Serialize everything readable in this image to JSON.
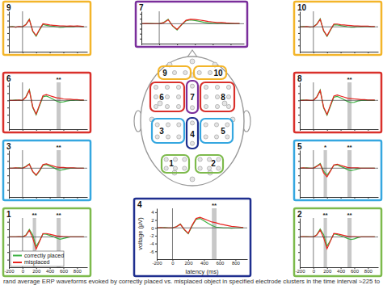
{
  "chart_data": [
    {
      "type": "line",
      "title": "1",
      "tick_labels": "x",
      "legend": "lower left",
      "x": [
        -200,
        -150,
        -100,
        -50,
        0,
        50,
        100,
        150,
        200,
        250,
        300,
        350,
        400,
        450,
        500,
        550,
        600,
        650,
        700,
        750,
        800,
        850,
        900
      ],
      "xlim": [
        -200,
        950
      ],
      "xticks": [
        -200,
        0,
        200,
        400,
        600,
        800
      ],
      "ylim": [
        -8,
        5
      ],
      "yticks": [
        4,
        2,
        0,
        -2,
        -4,
        -6
      ],
      "series": [
        {
          "name": "correctly placed",
          "color": "#3cb043",
          "values": [
            0,
            0,
            0,
            0,
            0,
            0.5,
            2,
            0.5,
            -2.5,
            -1,
            0.8,
            0.7,
            0.4,
            0.1,
            -0.3,
            -0.6,
            -0.4,
            -0.2,
            0,
            0,
            0,
            0,
            0
          ]
        },
        {
          "name": "misplaced",
          "color": "#e8231f",
          "values": [
            0,
            0,
            0,
            0.1,
            0,
            0.4,
            1.7,
            -0.3,
            -3.2,
            -1.2,
            0.9,
            0.9,
            0.7,
            0.5,
            0.3,
            0.2,
            0.1,
            0.1,
            0,
            0,
            0,
            0,
            0
          ]
        }
      ],
      "windows": [
        {
          "start": 150,
          "end": 200,
          "label": "**"
        },
        {
          "start": 500,
          "end": 560,
          "label": "**"
        }
      ]
    },
    {
      "type": "line",
      "title": "2",
      "tick_labels": "x",
      "x": [
        -200,
        -150,
        -100,
        -50,
        0,
        50,
        100,
        150,
        200,
        250,
        300,
        350,
        400,
        450,
        500,
        550,
        600,
        650,
        700,
        750,
        800,
        850,
        900
      ],
      "xlim": [
        -200,
        950
      ],
      "xticks": [
        -200,
        0,
        200,
        400,
        600,
        800
      ],
      "ylim": [
        -8,
        5
      ],
      "yticks": [
        4,
        2,
        0,
        -2,
        -4,
        -6
      ],
      "series": [
        {
          "color": "#3cb043",
          "values": [
            0,
            0,
            0.1,
            0,
            0,
            0.6,
            2.1,
            0.6,
            -2.4,
            -0.9,
            0.8,
            0.6,
            0.3,
            0,
            -0.4,
            -0.7,
            -0.5,
            -0.2,
            0,
            0,
            0,
            0,
            0
          ]
        },
        {
          "color": "#e8231f",
          "values": [
            0,
            0.1,
            0,
            0,
            0,
            0.5,
            1.8,
            -0.2,
            -3.1,
            -1.1,
            0.9,
            0.8,
            0.6,
            0.4,
            0.2,
            0.1,
            0.1,
            0,
            0,
            0,
            0,
            0,
            0
          ]
        }
      ],
      "windows": [
        {
          "start": 150,
          "end": 200,
          "label": "**"
        },
        {
          "start": 500,
          "end": 560,
          "label": "**"
        }
      ]
    },
    {
      "type": "line",
      "title": "3",
      "tick_labels": false,
      "x": [
        -200,
        -150,
        -100,
        -50,
        0,
        50,
        100,
        150,
        200,
        250,
        300,
        350,
        400,
        450,
        500,
        550,
        600,
        650,
        700,
        750,
        800,
        850,
        900
      ],
      "xlim": [
        -200,
        950
      ],
      "xticks": [
        -200,
        0,
        200,
        400,
        600,
        800
      ],
      "ylim": [
        -8,
        5
      ],
      "yticks": [
        4,
        2,
        0,
        -2,
        -4,
        -6
      ],
      "series": [
        {
          "color": "#3cb043",
          "values": [
            0,
            0,
            0,
            0.1,
            0,
            0.5,
            1.2,
            -1,
            -2,
            -0.8,
            0.8,
            1,
            0.6,
            0.2,
            -0.3,
            -0.6,
            -0.4,
            -0.2,
            0,
            0,
            0,
            0,
            0
          ]
        },
        {
          "color": "#e8231f",
          "values": [
            0,
            0,
            0.1,
            0,
            0,
            0.4,
            1.1,
            -0.9,
            -1.9,
            -0.6,
            1,
            1.2,
            0.9,
            0.6,
            0.3,
            0.2,
            0.2,
            0.1,
            0.1,
            0.1,
            0,
            0,
            0
          ]
        }
      ],
      "windows": [
        {
          "start": 500,
          "end": 560,
          "label": "**"
        }
      ]
    },
    {
      "type": "line",
      "title": "4",
      "xlabel": "latency (ms)",
      "ylabel": "voltage (µV)",
      "x": [
        -200,
        -150,
        -100,
        -50,
        0,
        50,
        100,
        150,
        200,
        250,
        300,
        350,
        400,
        450,
        500,
        550,
        600,
        650,
        700,
        750,
        800,
        850,
        900
      ],
      "xlim": [
        -200,
        950
      ],
      "xticks": [
        -200,
        0,
        200,
        400,
        600,
        800
      ],
      "ylim": [
        -8,
        5
      ],
      "yticks": [
        4,
        2,
        0,
        -2,
        -4,
        -6
      ],
      "series": [
        {
          "color": "#3cb043",
          "values": [
            0,
            0,
            0.1,
            0,
            0,
            0.3,
            1,
            -0.5,
            -1.5,
            0.5,
            2.2,
            2.4,
            1.8,
            1.2,
            0.6,
            0.2,
            0.1,
            0,
            0,
            -0.1,
            0,
            0,
            0
          ]
        },
        {
          "color": "#e8231f",
          "values": [
            0,
            0.1,
            0,
            0,
            0,
            0.3,
            0.9,
            -0.4,
            -1.4,
            0.7,
            2.4,
            2.7,
            2.3,
            1.9,
            1.5,
            1.3,
            1,
            0.8,
            0.6,
            0.4,
            0.3,
            0.2,
            0.1
          ]
        }
      ],
      "windows": [
        {
          "start": 500,
          "end": 560,
          "label": "**"
        }
      ]
    },
    {
      "type": "line",
      "title": "5",
      "tick_labels": false,
      "x": [
        -200,
        -150,
        -100,
        -50,
        0,
        50,
        100,
        150,
        200,
        250,
        300,
        350,
        400,
        450,
        500,
        550,
        600,
        650,
        700,
        750,
        800,
        850,
        900
      ],
      "xlim": [
        -200,
        950
      ],
      "xticks": [
        -200,
        0,
        200,
        400,
        600,
        800
      ],
      "ylim": [
        -8,
        5
      ],
      "yticks": [
        4,
        2,
        0,
        -2,
        -4,
        -6
      ],
      "series": [
        {
          "color": "#3cb043",
          "values": [
            0,
            0,
            0.1,
            0,
            0,
            0.6,
            1.3,
            -0.8,
            -1.9,
            -0.7,
            0.8,
            0.9,
            0.5,
            0.1,
            -0.4,
            -0.7,
            -0.5,
            -0.2,
            0,
            0,
            0,
            0,
            0
          ]
        },
        {
          "color": "#e8231f",
          "values": [
            0,
            0.1,
            0,
            0,
            0,
            0.5,
            1.1,
            -1.3,
            -2.4,
            -0.8,
            0.9,
            1.1,
            0.8,
            0.5,
            0.2,
            0.1,
            0.1,
            0.1,
            0,
            0,
            0,
            0,
            0
          ]
        }
      ],
      "windows": [
        {
          "start": 150,
          "end": 200,
          "label": "*"
        },
        {
          "start": 500,
          "end": 560,
          "label": "**"
        }
      ]
    },
    {
      "type": "line",
      "title": "6",
      "tick_labels": false,
      "x": [
        -200,
        -150,
        -100,
        -50,
        0,
        50,
        100,
        150,
        200,
        250,
        300,
        350,
        400,
        450,
        500,
        550,
        600,
        650,
        700,
        750,
        800,
        850,
        900
      ],
      "xlim": [
        -200,
        950
      ],
      "xticks": [
        -200,
        0,
        200,
        400,
        600,
        800
      ],
      "ylim": [
        -8,
        5
      ],
      "yticks": [
        4,
        2,
        0,
        -2,
        -4,
        -6
      ],
      "series": [
        {
          "color": "#3cb043",
          "values": [
            0,
            0,
            0.1,
            0,
            0,
            1,
            3,
            -2,
            -4,
            -1.5,
            1,
            1.2,
            0.8,
            0.3,
            -0.2,
            -0.5,
            -0.4,
            -0.2,
            0,
            0,
            0.1,
            0,
            0
          ]
        },
        {
          "color": "#e8231f",
          "values": [
            0,
            0,
            0,
            0.1,
            0,
            0.9,
            2.8,
            -1.8,
            -3.8,
            -1.2,
            1.3,
            1.6,
            1.3,
            1,
            0.7,
            0.6,
            0.4,
            0.3,
            0.3,
            0.2,
            0.2,
            0.1,
            0.1
          ]
        }
      ],
      "windows": [
        {
          "start": 500,
          "end": 560,
          "label": "**"
        }
      ]
    },
    {
      "type": "line",
      "title": "7",
      "tick_labels": false,
      "x": [
        -200,
        -150,
        -100,
        -50,
        0,
        50,
        100,
        150,
        200,
        250,
        300,
        350,
        400,
        450,
        500,
        550,
        600,
        650,
        700,
        750,
        800,
        850,
        900
      ],
      "xlim": [
        -200,
        950
      ],
      "xticks": [
        -200,
        0,
        200,
        400,
        600,
        800
      ],
      "ylim": [
        -8,
        5
      ],
      "yticks": [
        4,
        2,
        0,
        -2,
        -4,
        -6
      ],
      "series": [
        {
          "color": "#3cb043",
          "values": [
            0,
            0,
            0.1,
            0,
            0,
            0.5,
            1.8,
            -1,
            -2.5,
            -0.5,
            1.2,
            1.5,
            1.3,
            1,
            0.6,
            0.3,
            0.2,
            0.1,
            0.2,
            0.1,
            0,
            0,
            0
          ]
        },
        {
          "color": "#e8231f",
          "values": [
            0,
            0.1,
            0,
            0,
            0,
            0.4,
            1.6,
            -0.8,
            -2.3,
            -0.3,
            1.4,
            1.8,
            1.7,
            1.5,
            1.2,
            0.9,
            0.7,
            0.5,
            0.5,
            0.3,
            0.2,
            0.1,
            0.1
          ]
        }
      ]
    },
    {
      "type": "line",
      "title": "8",
      "tick_labels": false,
      "x": [
        -200,
        -150,
        -100,
        -50,
        0,
        50,
        100,
        150,
        200,
        250,
        300,
        350,
        400,
        450,
        500,
        550,
        600,
        650,
        700,
        750,
        800,
        850,
        900
      ],
      "xlim": [
        -200,
        950
      ],
      "xticks": [
        -200,
        0,
        200,
        400,
        600,
        800
      ],
      "ylim": [
        -8,
        5
      ],
      "yticks": [
        4,
        2,
        0,
        -2,
        -4,
        -6
      ],
      "series": [
        {
          "color": "#3cb043",
          "values": [
            0,
            0.1,
            0,
            0,
            0,
            1,
            2.9,
            -2.1,
            -4.1,
            -1.6,
            0.9,
            1.1,
            0.7,
            0.2,
            -0.3,
            -0.6,
            -0.5,
            -0.2,
            0,
            0,
            0,
            0,
            0
          ]
        },
        {
          "color": "#e8231f",
          "values": [
            0,
            0,
            0.1,
            0,
            0,
            0.9,
            2.7,
            -1.9,
            -3.9,
            -1.3,
            1.2,
            1.5,
            1.2,
            0.9,
            0.6,
            0.5,
            0.4,
            0.3,
            0.2,
            0.2,
            0.1,
            0.1,
            0.1
          ]
        }
      ],
      "windows": [
        {
          "start": 500,
          "end": 560,
          "label": "**"
        }
      ]
    },
    {
      "type": "line",
      "title": "9",
      "tick_labels": false,
      "x": [
        -200,
        -150,
        -100,
        -50,
        0,
        50,
        100,
        150,
        200,
        250,
        300,
        350,
        400,
        450,
        500,
        550,
        600,
        650,
        700,
        750,
        800,
        850,
        900
      ],
      "xlim": [
        -200,
        950
      ],
      "xticks": [
        -200,
        0,
        200,
        400,
        600,
        800
      ],
      "ylim": [
        -8,
        5
      ],
      "yticks": [
        4,
        2,
        0,
        -2,
        -4,
        -6
      ],
      "series": [
        {
          "color": "#3cb043",
          "values": [
            0,
            0.1,
            -0.1,
            0,
            0,
            0.8,
            2.5,
            -1.5,
            -3,
            -1,
            0.8,
            0.5,
            0.3,
            0.2,
            0,
            -0.2,
            -0.1,
            0,
            0.1,
            0,
            0.2,
            0.1,
            0
          ]
        },
        {
          "color": "#e8231f",
          "values": [
            0,
            0,
            -0.1,
            0.1,
            0,
            0.7,
            2.3,
            -1.3,
            -2.8,
            -0.8,
            1,
            0.8,
            0.6,
            0.5,
            0.4,
            0.3,
            0.3,
            0.2,
            0.3,
            0.2,
            0.3,
            0.2,
            0.1
          ]
        }
      ]
    },
    {
      "type": "line",
      "title": "10",
      "tick_labels": false,
      "x": [
        -200,
        -150,
        -100,
        -50,
        0,
        50,
        100,
        150,
        200,
        250,
        300,
        350,
        400,
        450,
        500,
        550,
        600,
        650,
        700,
        750,
        800,
        850,
        900
      ],
      "xlim": [
        -200,
        950
      ],
      "xticks": [
        -200,
        0,
        200,
        400,
        600,
        800
      ],
      "ylim": [
        -8,
        5
      ],
      "yticks": [
        4,
        2,
        0,
        -2,
        -4,
        -6
      ],
      "series": [
        {
          "color": "#3cb043",
          "values": [
            0,
            0.1,
            0,
            -0.1,
            0,
            0.9,
            2.6,
            -1.4,
            -3.1,
            -1.1,
            0.7,
            0.6,
            0.4,
            0.2,
            0,
            -0.1,
            -0.1,
            0,
            0,
            0.1,
            0.1,
            0,
            0
          ]
        },
        {
          "color": "#e8231f",
          "values": [
            0,
            0,
            0.1,
            0,
            0,
            0.8,
            2.4,
            -1.2,
            -2.9,
            -0.9,
            0.9,
            0.9,
            0.7,
            0.6,
            0.5,
            0.4,
            0.3,
            0.3,
            0.2,
            0.2,
            0.2,
            0.1,
            0.1
          ]
        }
      ]
    }
  ],
  "head_map": {
    "clusters": [
      {
        "label": "1",
        "color": "#7dba4c"
      },
      {
        "label": "2",
        "color": "#7dba4c"
      },
      {
        "label": "3",
        "color": "#35a7e0"
      },
      {
        "label": "4",
        "color": "#1f2f8f"
      },
      {
        "label": "5",
        "color": "#35a7e0"
      },
      {
        "label": "6",
        "color": "#d9302b"
      },
      {
        "label": "7",
        "color": "#7a2e9b"
      },
      {
        "label": "8",
        "color": "#d9302b"
      },
      {
        "label": "9",
        "color": "#f3b52a"
      },
      {
        "label": "10",
        "color": "#f3b52a"
      }
    ]
  },
  "caption": "rand average ERP waveforms evoked by correctly placed vs. misplaced object in specified electrode clusters in the time interval ≈225 to"
}
